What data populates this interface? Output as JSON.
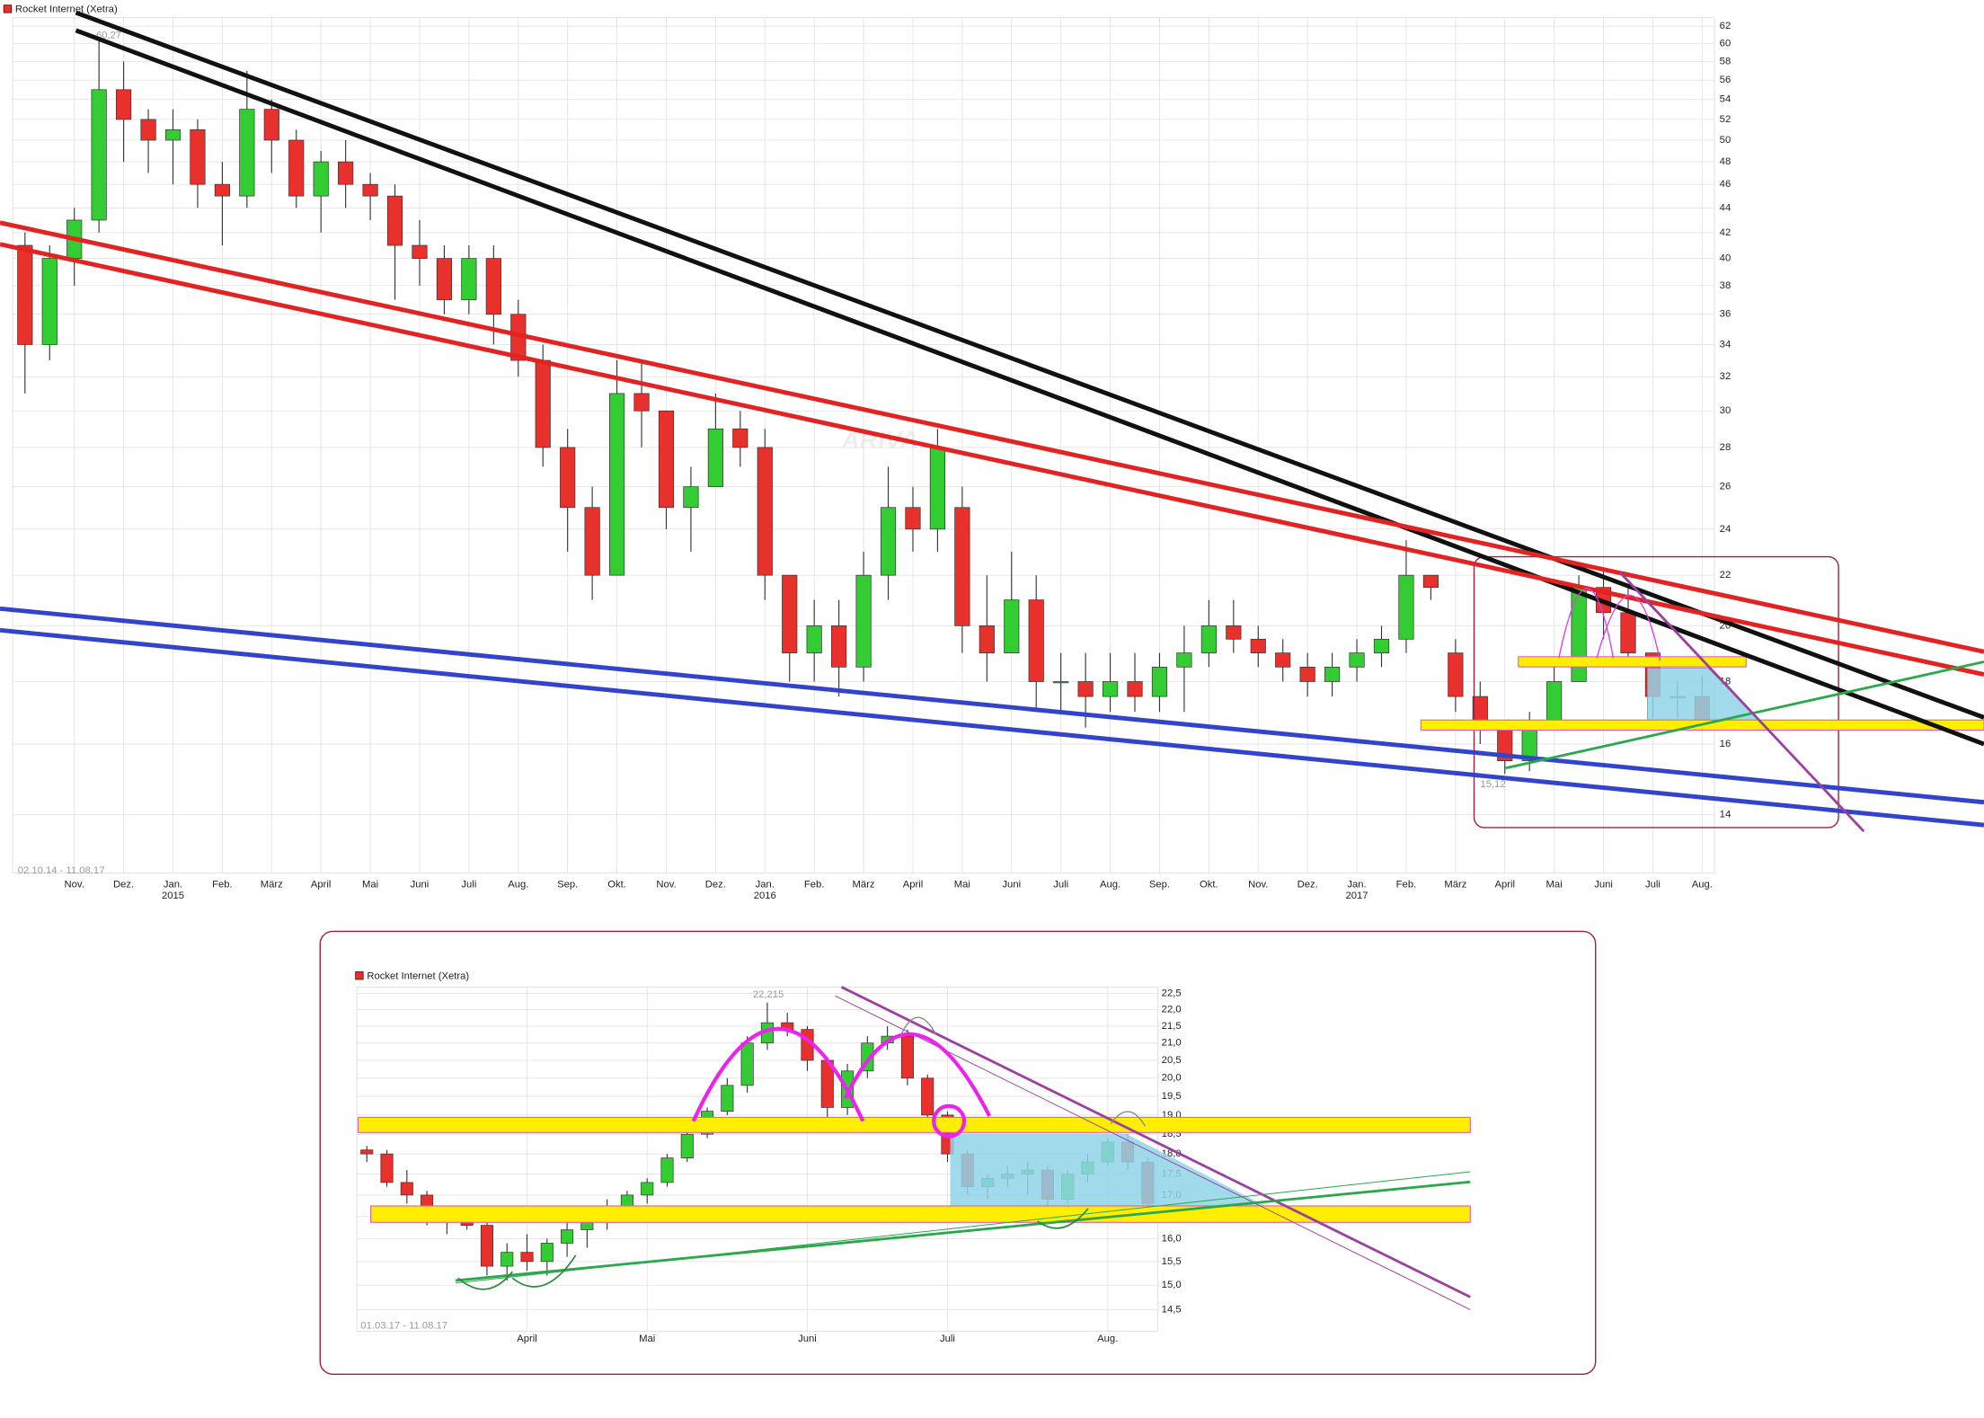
{
  "chart_data": [
    {
      "type": "candlestick",
      "title": "Rocket Internet (Xetra)",
      "log_scale": true,
      "grid": true,
      "up_color": "#33cc33",
      "down_color": "#e8302c",
      "date_range": "02.10.14 - 11.08.17",
      "watermark": "ARIVA",
      "max_label": "60,27",
      "min_label": "15,12",
      "categories": [
        null,
        null,
        "Nov.",
        null,
        "Dez.",
        null,
        "Jan.",
        null,
        "Feb.",
        null,
        "März",
        null,
        "April",
        null,
        "Mai",
        null,
        "Juni",
        null,
        "Juli",
        null,
        "Aug.",
        null,
        "Sep.",
        null,
        "Okt.",
        null,
        "Nov.",
        null,
        "Dez.",
        null,
        "Jan.",
        null,
        "Feb.",
        null,
        "März",
        null,
        "April",
        null,
        "Mai",
        null,
        "Juni",
        null,
        "Juli",
        null,
        "Aug.",
        null,
        "Sep.",
        null,
        "Okt.",
        null,
        "Nov.",
        null,
        "Dez.",
        null,
        "Jan.",
        null,
        "Feb.",
        null,
        "März",
        null,
        "April",
        null,
        "Mai",
        null,
        "Juni",
        null,
        "Juli",
        null,
        "Aug."
      ],
      "years": [
        null,
        null,
        null,
        null,
        null,
        null,
        "2015",
        null,
        null,
        null,
        null,
        null,
        null,
        null,
        null,
        null,
        null,
        null,
        null,
        null,
        null,
        null,
        null,
        null,
        null,
        null,
        null,
        null,
        null,
        null,
        "2016",
        null,
        null,
        null,
        null,
        null,
        null,
        null,
        null,
        null,
        null,
        null,
        null,
        null,
        null,
        null,
        null,
        null,
        null,
        null,
        null,
        null,
        null,
        null,
        "2017",
        null,
        null,
        null,
        null,
        null,
        null,
        null,
        null,
        null,
        null,
        null,
        null,
        null,
        null
      ],
      "open": [
        41,
        34,
        40,
        43,
        55,
        52,
        50,
        51,
        46,
        45,
        53,
        50,
        45,
        48,
        46,
        45,
        41,
        40,
        37,
        40,
        36,
        33,
        28,
        25,
        22,
        31,
        30,
        25,
        26,
        29,
        28,
        22,
        19,
        20,
        18.5,
        22,
        25,
        24,
        25,
        20,
        19,
        21,
        18,
        18,
        17.5,
        18,
        17.5,
        18.5,
        19,
        20,
        19.5,
        19,
        18.5,
        18,
        18.5,
        19,
        19.5,
        22,
        19,
        17.5,
        16.5,
        15.5,
        16.5,
        18,
        21.5,
        20.5,
        19,
        17.5,
        17.5
      ],
      "high": [
        42,
        41,
        44,
        60.27,
        58,
        53,
        53,
        52,
        48,
        57,
        54,
        51,
        49,
        50,
        47,
        46,
        43,
        41,
        41,
        41,
        37,
        34,
        29,
        26,
        33,
        33,
        30,
        27,
        31,
        30,
        29,
        22,
        21,
        21,
        23,
        27,
        26,
        29,
        26,
        22,
        23,
        22,
        19,
        19,
        19,
        19,
        19,
        20,
        21,
        21,
        20,
        19.5,
        19,
        19,
        19.5,
        20,
        23.5,
        22,
        19.5,
        18,
        16.5,
        17,
        18.5,
        22,
        22.2,
        21.5,
        19,
        18,
        18.2
      ],
      "low": [
        31,
        33,
        38,
        42,
        48,
        47,
        46,
        44,
        41,
        44,
        47,
        44,
        42,
        44,
        43,
        37,
        38,
        36,
        36,
        34,
        32,
        27,
        23,
        21,
        22,
        28,
        24,
        23,
        26,
        27,
        21,
        18,
        18,
        17.5,
        18,
        21,
        23,
        23,
        19,
        18,
        19,
        17,
        17,
        16.5,
        17,
        17,
        17,
        17,
        18.5,
        19,
        18.5,
        18,
        17.5,
        17.5,
        18,
        18.5,
        19,
        21,
        17,
        16,
        15.12,
        15.2,
        16.5,
        18,
        19.5,
        18.8,
        16.8,
        16.8,
        16.5
      ],
      "close": [
        34,
        40,
        43,
        55,
        52,
        50,
        51,
        46,
        45,
        53,
        50,
        45,
        48,
        46,
        45,
        41,
        40,
        37,
        40,
        36,
        33,
        28,
        25,
        22,
        31,
        30,
        25,
        26,
        29,
        28,
        22,
        19,
        20,
        18.5,
        22,
        25,
        24,
        28,
        20,
        19,
        21,
        18,
        18,
        17.5,
        18,
        17.5,
        18.5,
        19,
        20,
        19.5,
        19,
        18.5,
        18,
        18.5,
        19,
        19.5,
        22,
        21.5,
        17.5,
        16.5,
        15.5,
        16.5,
        18,
        21.5,
        20.5,
        19,
        17.5,
        17.5,
        16.7
      ],
      "ylim": [
        12.54,
        63.0
      ],
      "yticks": [
        14,
        16,
        18,
        20,
        22,
        24,
        26,
        28,
        30,
        32,
        34,
        36,
        38,
        40,
        42,
        44,
        46,
        48,
        50,
        52,
        54,
        56,
        58,
        60,
        62
      ]
    },
    {
      "type": "candlestick",
      "title": "Rocket Internet (Xetra)",
      "log_scale": true,
      "grid": true,
      "up_color": "#33cc33",
      "down_color": "#e8302c",
      "date_range": "01.03.17 - 11.08.17",
      "max_label": "22,215",
      "categories": [
        null,
        null,
        null,
        null,
        null,
        null,
        null,
        null,
        "April",
        null,
        null,
        null,
        null,
        null,
        "Mai",
        null,
        null,
        null,
        null,
        null,
        null,
        null,
        "Juni",
        null,
        null,
        null,
        null,
        null,
        null,
        "Juli",
        null,
        null,
        null,
        null,
        null,
        null,
        null,
        "Aug.",
        null,
        null
      ],
      "open": [
        18.1,
        18.0,
        17.3,
        17.0,
        16.4,
        16.5,
        16.3,
        15.4,
        15.7,
        15.5,
        15.9,
        16.2,
        16.4,
        16.7,
        17.0,
        17.3,
        17.9,
        18.5,
        19.1,
        19.8,
        21.0,
        21.6,
        21.4,
        20.5,
        19.2,
        20.2,
        21.0,
        21.2,
        20.0,
        19.0,
        18.0,
        17.2,
        17.4,
        17.5,
        17.6,
        16.9,
        17.5,
        17.8,
        18.3,
        17.8
      ],
      "high": [
        18.2,
        18.1,
        17.6,
        17.1,
        16.6,
        16.6,
        16.4,
        15.9,
        16.1,
        16.0,
        16.4,
        16.6,
        16.9,
        17.1,
        17.4,
        18.0,
        18.6,
        19.2,
        20.0,
        21.2,
        22.215,
        21.9,
        21.5,
        20.6,
        20.4,
        21.2,
        21.5,
        21.4,
        20.1,
        19.1,
        18.1,
        17.5,
        17.7,
        17.8,
        17.7,
        17.6,
        18.0,
        18.4,
        18.5,
        17.9
      ],
      "low": [
        17.8,
        17.2,
        16.8,
        16.3,
        16.1,
        16.2,
        15.2,
        15.1,
        15.3,
        15.2,
        15.6,
        15.8,
        16.2,
        16.5,
        16.8,
        17.2,
        17.8,
        18.4,
        19.0,
        19.6,
        20.8,
        21.2,
        20.2,
        18.7,
        19.0,
        20.0,
        20.8,
        19.8,
        18.8,
        17.8,
        17.0,
        16.9,
        17.2,
        17.0,
        16.6,
        16.8,
        17.3,
        17.7,
        17.6,
        16.6
      ],
      "close": [
        18.0,
        17.3,
        17.0,
        16.4,
        16.5,
        16.3,
        15.4,
        15.7,
        15.5,
        15.9,
        16.2,
        16.4,
        16.7,
        17.0,
        17.3,
        17.9,
        18.5,
        19.1,
        19.8,
        21.0,
        21.6,
        21.4,
        20.5,
        19.2,
        20.2,
        21.0,
        21.2,
        20.0,
        19.0,
        18.0,
        17.2,
        17.4,
        17.5,
        17.6,
        16.9,
        17.5,
        17.8,
        18.3,
        17.8,
        16.8
      ],
      "ylim": [
        14.07,
        22.7
      ],
      "yticks": [
        {
          "value": 14.5,
          "label": "14,5"
        },
        {
          "value": 15,
          "label": "15,0"
        },
        {
          "value": 15.5,
          "label": "15,5"
        },
        {
          "value": 16,
          "label": "16,0"
        },
        {
          "value": 16.5,
          "label": "16,5"
        },
        {
          "value": 17,
          "label": "17,0"
        },
        {
          "value": 17.5,
          "label": "17,5"
        },
        {
          "value": 18,
          "label": "18,0"
        },
        {
          "value": 18.5,
          "label": "18,5"
        },
        {
          "value": 19,
          "label": "19,0"
        },
        {
          "value": 19.5,
          "label": "19,5"
        },
        {
          "value": 20,
          "label": "20,0"
        },
        {
          "value": 20.5,
          "label": "20,5"
        },
        {
          "value": 21,
          "label": "21,0"
        },
        {
          "value": 21.5,
          "label": "21,5"
        },
        {
          "value": 22,
          "label": "22,0"
        },
        {
          "value": 22.5,
          "label": "22,5"
        }
      ]
    }
  ]
}
